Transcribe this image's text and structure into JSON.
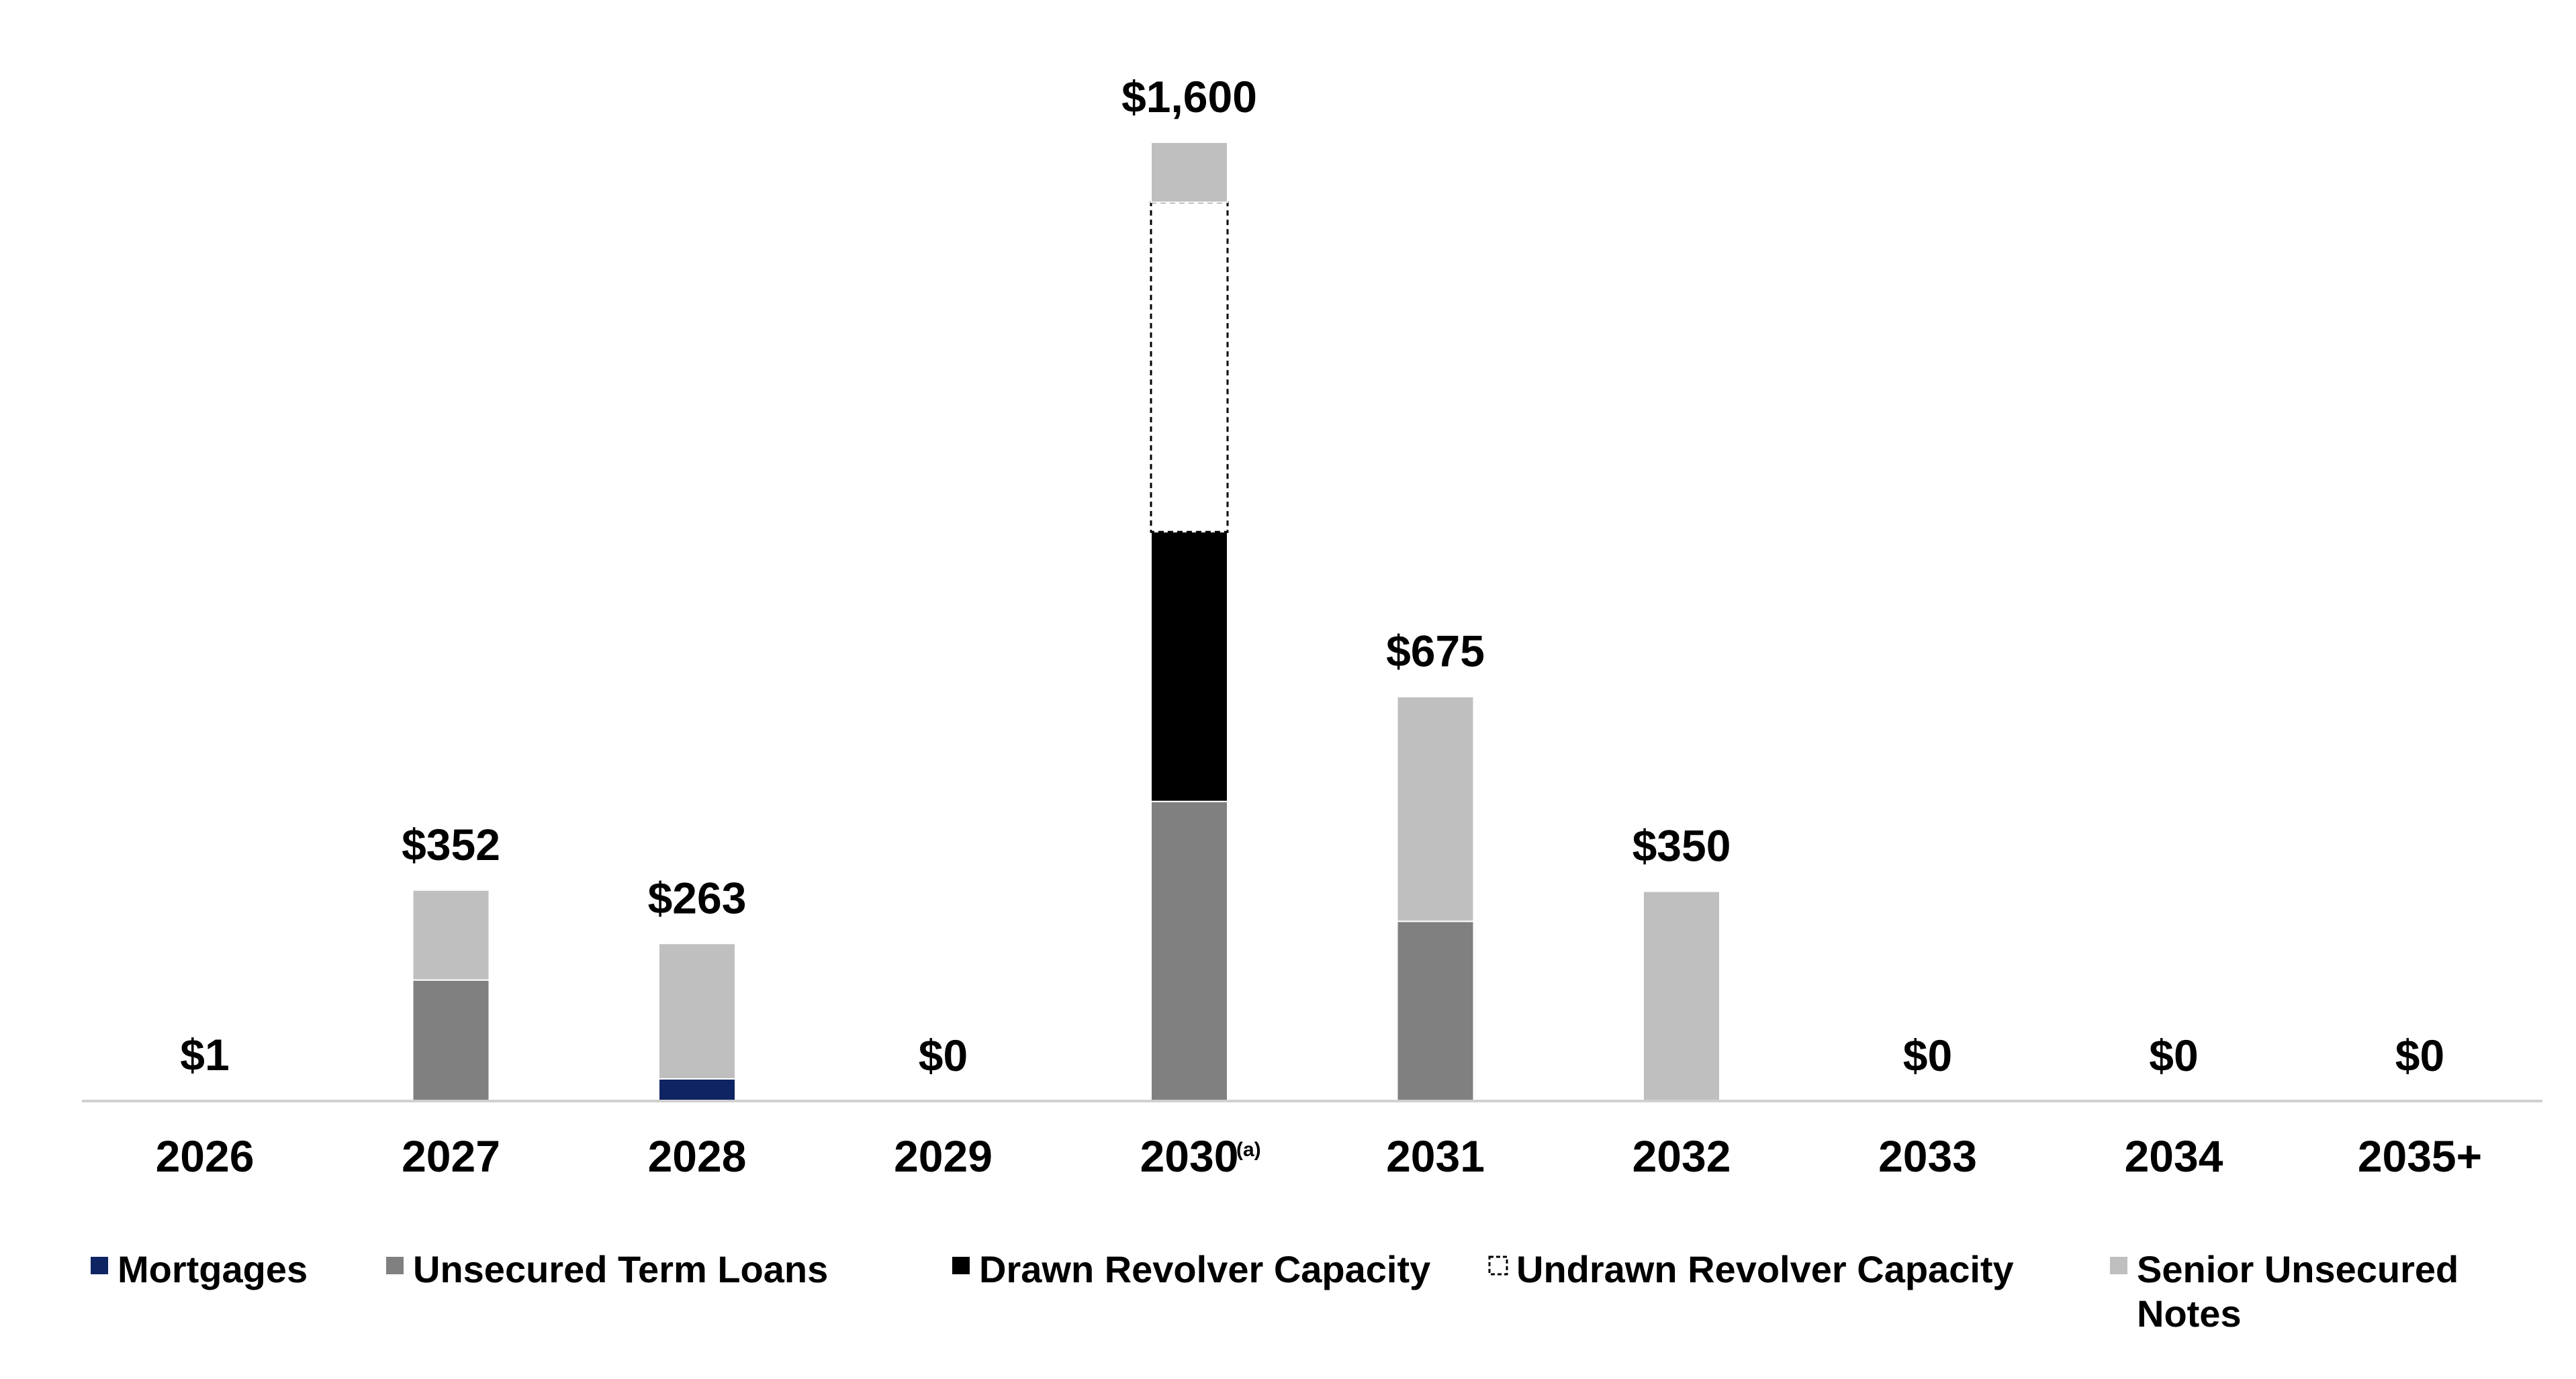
{
  "chart_data": {
    "type": "bar",
    "stacked": true,
    "categories": [
      "2026",
      "2027",
      "2028",
      "2029",
      "2030",
      "2031",
      "2032",
      "2033",
      "2034",
      "2035+"
    ],
    "category_footnotes": [
      "",
      "",
      "",
      "",
      "(a)",
      "",
      "",
      "",
      "",
      ""
    ],
    "total_labels": [
      "$1",
      "$352",
      "$263",
      "$0",
      "$1,600",
      "$675",
      "$350",
      "$0",
      "$0",
      "$0"
    ],
    "totals": [
      1,
      352,
      263,
      0,
      1600,
      675,
      350,
      0,
      0,
      0
    ],
    "series": [
      {
        "name": "Mortgages",
        "color": "#0f2462",
        "style": "solid",
        "values": [
          1,
          0,
          37,
          0,
          0,
          0,
          0,
          0,
          0,
          0
        ]
      },
      {
        "name": "Unsecured Term Loans",
        "color": "#808080",
        "style": "solid",
        "values": [
          0,
          202,
          0,
          0,
          500,
          300,
          0,
          0,
          0,
          0
        ]
      },
      {
        "name": "Drawn Revolver Capacity",
        "color": "#000000",
        "style": "solid",
        "values": [
          0,
          0,
          0,
          0,
          450,
          0,
          0,
          0,
          0,
          0
        ]
      },
      {
        "name": "Undrawn Revolver Capacity",
        "color": "#ffffff",
        "style": "dashed",
        "values": [
          0,
          0,
          0,
          0,
          550,
          0,
          0,
          0,
          0,
          0
        ]
      },
      {
        "name": "Senior Unsecured Notes",
        "color": "#bfbfbf",
        "style": "solid",
        "values": [
          0,
          150,
          226,
          0,
          100,
          375,
          350,
          0,
          0,
          0
        ]
      }
    ],
    "ylim": [
      0,
      1750
    ],
    "grid": false,
    "legend_position": "bottom"
  }
}
